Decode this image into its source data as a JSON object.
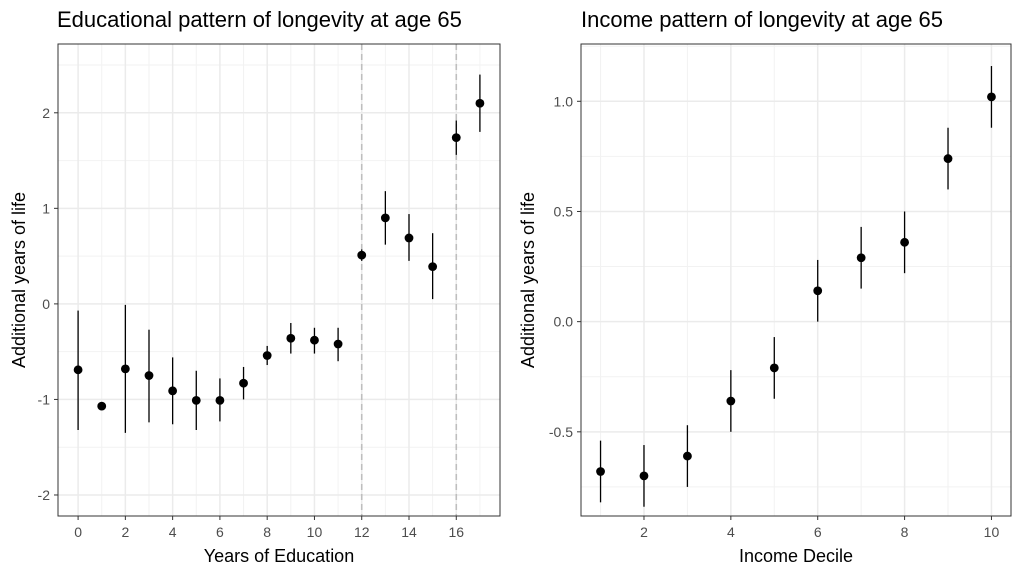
{
  "chart_data": [
    {
      "type": "scatter",
      "title": "Educational pattern of longevity at age 65",
      "xlabel": "Years of Education",
      "ylabel": "Additional years of life",
      "xlim": [
        -0.85,
        17.85
      ],
      "ylim": [
        -2.22,
        2.72
      ],
      "xticks": [
        0,
        2,
        4,
        6,
        8,
        10,
        12,
        14,
        16
      ],
      "yticks": [
        -2,
        -1,
        0,
        1,
        2
      ],
      "ytick_labels": [
        "-2",
        "-1",
        "0",
        "1",
        "2"
      ],
      "vlines": [
        12,
        16
      ],
      "grid": true,
      "points": [
        {
          "x": 0,
          "y": -0.69,
          "lo": -1.32,
          "hi": -0.07
        },
        {
          "x": 1,
          "y": -1.07,
          "lo": -1.07,
          "hi": -1.07
        },
        {
          "x": 2,
          "y": -0.68,
          "lo": -1.35,
          "hi": -0.01
        },
        {
          "x": 3,
          "y": -0.75,
          "lo": -1.24,
          "hi": -0.27
        },
        {
          "x": 4,
          "y": -0.91,
          "lo": -1.26,
          "hi": -0.56
        },
        {
          "x": 5,
          "y": -1.01,
          "lo": -1.32,
          "hi": -0.7
        },
        {
          "x": 6,
          "y": -1.01,
          "lo": -1.23,
          "hi": -0.78
        },
        {
          "x": 7,
          "y": -0.83,
          "lo": -1.0,
          "hi": -0.66
        },
        {
          "x": 8,
          "y": -0.54,
          "lo": -0.64,
          "hi": -0.44
        },
        {
          "x": 9,
          "y": -0.36,
          "lo": -0.52,
          "hi": -0.2
        },
        {
          "x": 10,
          "y": -0.38,
          "lo": -0.52,
          "hi": -0.25
        },
        {
          "x": 11,
          "y": -0.42,
          "lo": -0.6,
          "hi": -0.25
        },
        {
          "x": 12,
          "y": 0.51,
          "lo": 0.45,
          "hi": 0.57
        },
        {
          "x": 13,
          "y": 0.9,
          "lo": 0.62,
          "hi": 1.18
        },
        {
          "x": 14,
          "y": 0.69,
          "lo": 0.45,
          "hi": 0.94
        },
        {
          "x": 15,
          "y": 0.39,
          "lo": 0.05,
          "hi": 0.74
        },
        {
          "x": 16,
          "y": 1.74,
          "lo": 1.56,
          "hi": 1.92
        },
        {
          "x": 17,
          "y": 2.1,
          "lo": 1.8,
          "hi": 2.4
        }
      ]
    },
    {
      "type": "scatter",
      "title": "Income pattern of longevity at age 65",
      "xlabel": "Income Decile",
      "ylabel": "Additional years of life",
      "xlim": [
        0.55,
        10.45
      ],
      "ylim": [
        -0.882,
        1.26
      ],
      "xticks": [
        2,
        4,
        6,
        8,
        10
      ],
      "yticks": [
        -0.5,
        0.0,
        0.5,
        1.0
      ],
      "ytick_labels": [
        "-0.5",
        "0.0",
        "0.5",
        "1.0"
      ],
      "vlines": [],
      "grid": true,
      "points": [
        {
          "x": 1,
          "y": -0.68,
          "lo": -0.82,
          "hi": -0.54
        },
        {
          "x": 2,
          "y": -0.7,
          "lo": -0.84,
          "hi": -0.56
        },
        {
          "x": 3,
          "y": -0.61,
          "lo": -0.75,
          "hi": -0.47
        },
        {
          "x": 4,
          "y": -0.36,
          "lo": -0.5,
          "hi": -0.22
        },
        {
          "x": 5,
          "y": -0.21,
          "lo": -0.35,
          "hi": -0.07
        },
        {
          "x": 6,
          "y": 0.14,
          "lo": 0.0,
          "hi": 0.28
        },
        {
          "x": 7,
          "y": 0.29,
          "lo": 0.15,
          "hi": 0.43
        },
        {
          "x": 8,
          "y": 0.36,
          "lo": 0.22,
          "hi": 0.5
        },
        {
          "x": 9,
          "y": 0.74,
          "lo": 0.6,
          "hi": 0.88
        },
        {
          "x": 10,
          "y": 1.02,
          "lo": 0.88,
          "hi": 1.16
        }
      ]
    }
  ]
}
